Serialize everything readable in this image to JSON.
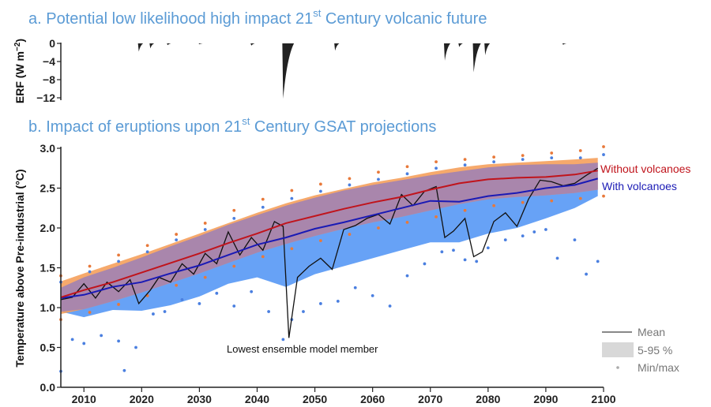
{
  "colors": {
    "title": "#5b9bd5",
    "without": "#c0141c",
    "with": "#1a1ab5",
    "band_without": "#f5a05c",
    "band_with": "#5f9df5",
    "band_overlap": "#a986ac",
    "lowest": "#111111",
    "erf": "#222222",
    "dot_without": "#e8793a",
    "dot_with": "#4a7fe0"
  },
  "panel_a": {
    "title_main": "a.  Potential low likelihood high impact 21",
    "title_sup": "st",
    "title_end": " Century volcanic future",
    "ylabel": "ERF (W m",
    "ylabel_sup": "−2",
    "ylabel_end": ")",
    "yticks": [
      "0",
      "−4",
      "−8",
      "−12"
    ]
  },
  "panel_b": {
    "title_main": "b.  Impact of eruptions upon 21",
    "title_sup": "st",
    "title_end": " Century GSAT projections",
    "ylabel": "Temperature above Pre-industrial (°C)",
    "yticks": [
      "0.0",
      "0.5",
      "1.0",
      "1.5",
      "2.0",
      "2.5",
      "3.0"
    ],
    "xticks": [
      "2010",
      "2020",
      "2030",
      "2040",
      "2050",
      "2060",
      "2070",
      "2080",
      "2090",
      "2100"
    ],
    "annotation": "Lowest ensemble model member",
    "label_without": "Without volcanoes",
    "label_with": "With volcanoes",
    "legend": {
      "mean": "Mean",
      "range": "5-95 %",
      "minmax": "Min/max"
    }
  },
  "chart_data": [
    {
      "type": "area",
      "panel": "a",
      "ylabel": "ERF (W m−2)",
      "xlim": [
        2006,
        2100
      ],
      "ylim": [
        -12,
        0
      ],
      "eruptions": [
        {
          "year": 2019.5,
          "min": -1.8
        },
        {
          "year": 2021.5,
          "min": -1.1
        },
        {
          "year": 2024.5,
          "min": -0.4
        },
        {
          "year": 2030,
          "min": -0.2
        },
        {
          "year": 2039,
          "min": -0.5
        },
        {
          "year": 2044.5,
          "min": -12.2
        },
        {
          "year": 2053.5,
          "min": -1.6
        },
        {
          "year": 2072.5,
          "min": -3.8
        },
        {
          "year": 2075,
          "min": -0.8
        },
        {
          "year": 2077.5,
          "min": -6.4
        },
        {
          "year": 2079.5,
          "min": -2.6
        },
        {
          "year": 2093,
          "min": -0.3
        }
      ]
    },
    {
      "type": "line",
      "panel": "b",
      "ylabel": "Temperature above Pre-industrial (°C)",
      "xlim": [
        2006,
        2100
      ],
      "ylim": [
        0,
        3
      ],
      "x": [
        2006,
        2010,
        2015,
        2020,
        2025,
        2030,
        2035,
        2040,
        2045,
        2050,
        2055,
        2060,
        2065,
        2070,
        2075,
        2080,
        2085,
        2090,
        2095,
        2099
      ],
      "series": [
        {
          "name": "Without volcanoes",
          "mean": [
            1.13,
            1.22,
            1.32,
            1.44,
            1.56,
            1.68,
            1.81,
            1.93,
            2.06,
            2.15,
            2.24,
            2.32,
            2.39,
            2.48,
            2.56,
            2.61,
            2.63,
            2.64,
            2.67,
            2.72
          ],
          "p5": [
            0.92,
            0.98,
            1.08,
            1.19,
            1.31,
            1.43,
            1.56,
            1.69,
            1.8,
            1.9,
            1.99,
            2.07,
            2.14,
            2.22,
            2.3,
            2.36,
            2.39,
            2.41,
            2.44,
            2.48
          ],
          "p95": [
            1.33,
            1.43,
            1.55,
            1.67,
            1.8,
            1.93,
            2.06,
            2.19,
            2.31,
            2.41,
            2.49,
            2.57,
            2.63,
            2.7,
            2.76,
            2.8,
            2.82,
            2.84,
            2.86,
            2.88
          ]
        },
        {
          "name": "With volcanoes",
          "mean": [
            1.12,
            1.16,
            1.26,
            1.32,
            1.43,
            1.53,
            1.66,
            1.79,
            1.88,
            1.99,
            2.07,
            2.16,
            2.25,
            2.34,
            2.33,
            2.4,
            2.44,
            2.5,
            2.54,
            2.62
          ],
          "p5": [
            0.95,
            0.88,
            0.97,
            0.96,
            1.03,
            1.14,
            1.3,
            1.38,
            1.26,
            1.42,
            1.52,
            1.62,
            1.72,
            1.82,
            1.82,
            1.93,
            2.0,
            2.12,
            2.25,
            2.4
          ],
          "p95": [
            1.25,
            1.38,
            1.5,
            1.63,
            1.77,
            1.9,
            2.04,
            2.16,
            2.28,
            2.38,
            2.47,
            2.54,
            2.6,
            2.66,
            2.71,
            2.76,
            2.79,
            2.8,
            2.8,
            2.82
          ]
        },
        {
          "name": "Lowest ensemble model member",
          "x": [
            2006,
            2008,
            2010,
            2012,
            2014,
            2016,
            2018,
            2019.5,
            2021.5,
            2023,
            2025,
            2027,
            2029,
            2031,
            2033,
            2035,
            2037,
            2039,
            2041,
            2043,
            2044.5,
            2045.5,
            2047,
            2049,
            2051,
            2053,
            2055,
            2057,
            2059,
            2061,
            2063,
            2065,
            2067,
            2069,
            2071,
            2072.5,
            2074,
            2076,
            2077.5,
            2079,
            2081,
            2083,
            2085,
            2087,
            2089,
            2091,
            2093,
            2095,
            2097,
            2099
          ],
          "values": [
            1.1,
            1.13,
            1.3,
            1.12,
            1.32,
            1.2,
            1.35,
            1.05,
            1.22,
            1.38,
            1.32,
            1.55,
            1.42,
            1.68,
            1.55,
            1.95,
            1.66,
            1.88,
            1.72,
            2.08,
            2.02,
            0.62,
            1.38,
            1.52,
            1.62,
            1.48,
            1.98,
            2.03,
            2.12,
            2.17,
            2.05,
            2.42,
            2.28,
            2.46,
            2.52,
            1.88,
            1.96,
            2.12,
            1.64,
            1.7,
            2.08,
            2.19,
            2.02,
            2.36,
            2.6,
            2.58,
            2.53,
            2.56,
            2.66,
            2.75
          ]
        }
      ],
      "extremes": {
        "without_max": [
          [
            2006,
            1.4
          ],
          [
            2011,
            1.52
          ],
          [
            2016,
            1.66
          ],
          [
            2021,
            1.78
          ],
          [
            2026,
            1.92
          ],
          [
            2031,
            2.06
          ],
          [
            2036,
            2.22
          ],
          [
            2041,
            2.36
          ],
          [
            2046,
            2.47
          ],
          [
            2051,
            2.55
          ],
          [
            2056,
            2.62
          ],
          [
            2061,
            2.7
          ],
          [
            2066,
            2.77
          ],
          [
            2071,
            2.83
          ],
          [
            2076,
            2.86
          ],
          [
            2081,
            2.89
          ],
          [
            2086,
            2.91
          ],
          [
            2091,
            2.94
          ],
          [
            2096,
            2.97
          ],
          [
            2100,
            3.02
          ]
        ],
        "without_min": [
          [
            2006,
            0.85
          ],
          [
            2011,
            0.94
          ],
          [
            2016,
            1.04
          ],
          [
            2021,
            1.15
          ],
          [
            2026,
            1.28
          ],
          [
            2031,
            1.38
          ],
          [
            2036,
            1.52
          ],
          [
            2041,
            1.64
          ],
          [
            2046,
            1.74
          ],
          [
            2051,
            1.84
          ],
          [
            2056,
            1.92
          ],
          [
            2061,
            2.0
          ],
          [
            2066,
            2.07
          ],
          [
            2071,
            2.14
          ],
          [
            2076,
            2.22
          ],
          [
            2081,
            2.28
          ],
          [
            2086,
            2.32
          ],
          [
            2091,
            2.34
          ],
          [
            2096,
            2.37
          ],
          [
            2100,
            2.4
          ]
        ],
        "with_max": [
          [
            2006,
            1.32
          ],
          [
            2011,
            1.45
          ],
          [
            2016,
            1.58
          ],
          [
            2021,
            1.7
          ],
          [
            2026,
            1.85
          ],
          [
            2031,
            1.98
          ],
          [
            2036,
            2.12
          ],
          [
            2041,
            2.26
          ],
          [
            2046,
            2.37
          ],
          [
            2051,
            2.46
          ],
          [
            2056,
            2.54
          ],
          [
            2061,
            2.61
          ],
          [
            2066,
            2.68
          ],
          [
            2071,
            2.75
          ],
          [
            2076,
            2.79
          ],
          [
            2081,
            2.83
          ],
          [
            2086,
            2.86
          ],
          [
            2091,
            2.88
          ],
          [
            2096,
            2.88
          ],
          [
            2100,
            2.92
          ]
        ],
        "with_min": [
          [
            2006,
            0.2
          ],
          [
            2008,
            0.6
          ],
          [
            2010,
            0.55
          ],
          [
            2013,
            0.65
          ],
          [
            2016,
            0.58
          ],
          [
            2017,
            0.21
          ],
          [
            2019,
            0.5
          ],
          [
            2022,
            0.92
          ],
          [
            2024,
            0.95
          ],
          [
            2027,
            1.1
          ],
          [
            2030,
            1.05
          ],
          [
            2033,
            1.18
          ],
          [
            2036,
            1.02
          ],
          [
            2039,
            1.2
          ],
          [
            2042,
            0.95
          ],
          [
            2044.5,
            0.6
          ],
          [
            2046,
            0.85
          ],
          [
            2048,
            0.95
          ],
          [
            2051,
            1.05
          ],
          [
            2054,
            1.08
          ],
          [
            2057,
            1.25
          ],
          [
            2060,
            1.15
          ],
          [
            2063,
            1.02
          ],
          [
            2066,
            1.4
          ],
          [
            2069,
            1.55
          ],
          [
            2072,
            1.7
          ],
          [
            2074,
            1.72
          ],
          [
            2076,
            1.6
          ],
          [
            2078,
            1.58
          ],
          [
            2080,
            1.75
          ],
          [
            2083,
            1.85
          ],
          [
            2086,
            1.9
          ],
          [
            2088,
            1.95
          ],
          [
            2090,
            1.98
          ],
          [
            2092,
            1.62
          ],
          [
            2095,
            1.85
          ],
          [
            2097,
            1.42
          ],
          [
            2099,
            1.58
          ]
        ]
      }
    }
  ]
}
